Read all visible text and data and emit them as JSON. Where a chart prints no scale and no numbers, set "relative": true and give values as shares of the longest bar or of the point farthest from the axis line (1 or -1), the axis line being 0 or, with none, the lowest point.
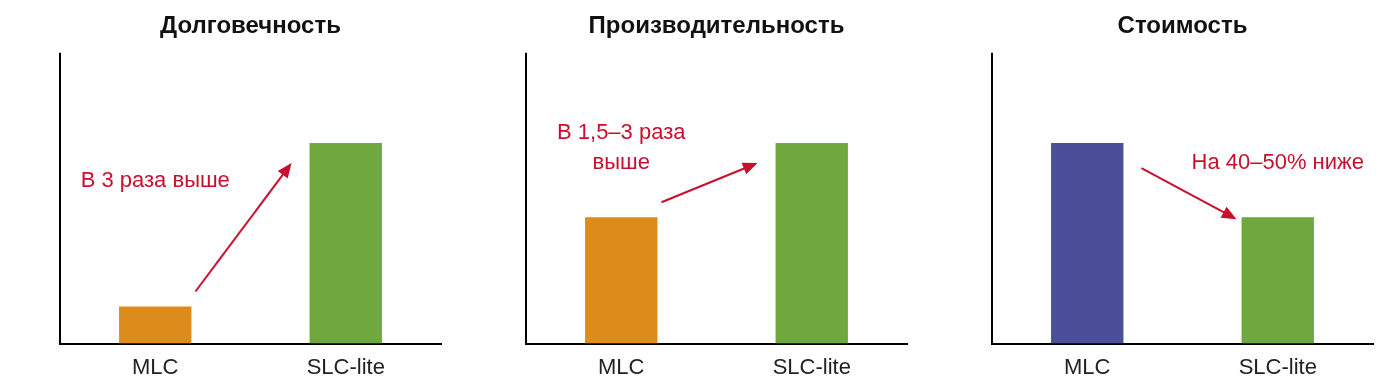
{
  "chart_data": [
    {
      "type": "bar",
      "title": "Долговечность",
      "categories": [
        "MLC",
        "SLC-lite"
      ],
      "values": [
        0.185,
        1
      ],
      "colors": [
        "#db8c1a",
        "#6fa83f"
      ],
      "relative": true,
      "annotations": [
        "В 3 раза выше"
      ]
    },
    {
      "type": "bar",
      "title": "Производительность",
      "categories": [
        "MLC",
        "SLC-lite"
      ],
      "values": [
        0.63,
        1
      ],
      "colors": [
        "#db8c1a",
        "#6fa83f"
      ],
      "relative": true,
      "annotations": [
        "В 1,5–3 раза выше"
      ]
    },
    {
      "type": "bar",
      "title": "Стоимость",
      "categories": [
        "MLC",
        "SLC-lite"
      ],
      "values": [
        1,
        0.63
      ],
      "colors": [
        "#4b4f9a",
        "#6fa83f"
      ],
      "relative": true,
      "annotations": [
        "На 40–50% ниже"
      ]
    }
  ]
}
